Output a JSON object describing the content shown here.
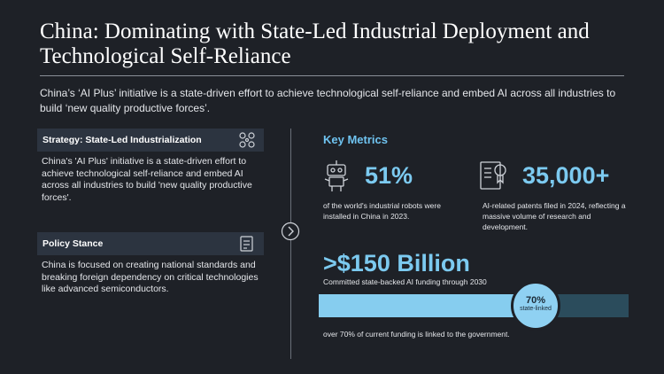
{
  "header": {
    "title": "China: Dominating with State-Led Industrial Deployment and Technological Self-Reliance",
    "subtitle": "China’s ‘AI Plus’ initiative is a state-driven effort to achieve technological self-reliance and embed AI across all industries to build ‘new quality productive forces’."
  },
  "left": [
    {
      "heading": "Strategy: State-Led Industrialization",
      "text": "China's 'AI Plus' initiative is a state-driven effort to achieve technological self-reliance and embed AI across all industries to build 'new quality productive forces'."
    },
    {
      "heading": "Policy Stance",
      "text": "China is focused on creating national standards and breaking foreign dependency on critical technologies like advanced semiconductors."
    }
  ],
  "metrics": {
    "heading": "Key Metrics",
    "robots": {
      "value": "51%",
      "text": "of the world's industrial robots were installed in China in 2023."
    },
    "patents": {
      "value": "35,000+",
      "text": "AI-related patents filed in 2024, reflecting a massive volume of research and development."
    },
    "funding": {
      "value": ">$150 Billion",
      "text": "Committed state-backed AI funding through 2030",
      "share": {
        "value": 70,
        "label": "70%",
        "caption": "state-linked"
      },
      "note": "over 70% of current funding is linked to the government."
    }
  }
}
